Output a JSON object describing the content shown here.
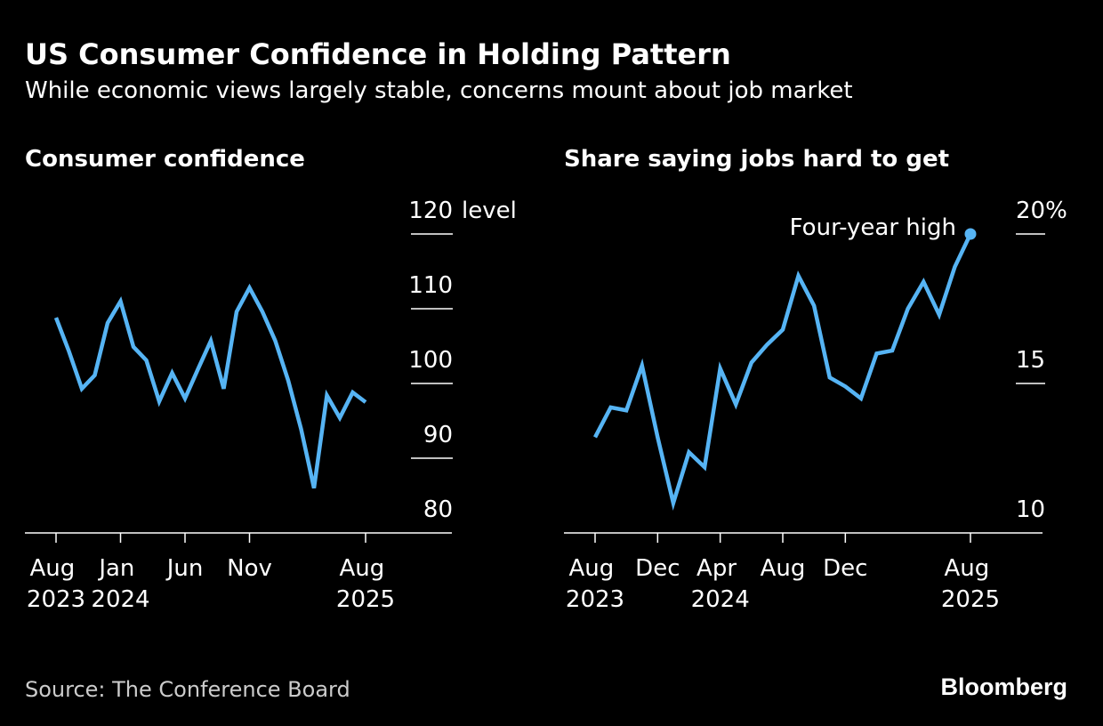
{
  "title": "US Consumer Confidence in Holding Pattern",
  "subtitle": "While economic views largely stable, concerns mount about job market",
  "source": "Source: The Conference Board",
  "logo": "Bloomberg",
  "chart_data": [
    {
      "type": "line",
      "title": "Consumer confidence",
      "y_unit": "level",
      "color": "#56b4f4",
      "categories": [
        "Aug 2023",
        null,
        null,
        null,
        null,
        "Jan 2024",
        null,
        null,
        null,
        null,
        "Jun",
        null,
        null,
        null,
        null,
        "Nov",
        null,
        null,
        null,
        null,
        null,
        null,
        null,
        null,
        "Aug 2025"
      ],
      "values": [
        108.8,
        104.3,
        99.3,
        101.1,
        108.1,
        111.0,
        104.9,
        103.1,
        97.6,
        101.4,
        98.0,
        101.9,
        105.7,
        99.3,
        109.6,
        112.8,
        109.6,
        105.7,
        100.4,
        93.9,
        86.0,
        98.4,
        95.4,
        98.8,
        97.5
      ],
      "ylim": [
        80,
        120
      ],
      "yticks": [
        80,
        90,
        100,
        110,
        120
      ]
    },
    {
      "type": "line",
      "title": "Share saying jobs hard to get",
      "color": "#56b4f4",
      "annotation": "Four-year high",
      "categories": [
        "Aug 2023",
        null,
        null,
        null,
        "Dec",
        null,
        null,
        null,
        "Apr 2024",
        null,
        null,
        null,
        "Aug",
        null,
        null,
        null,
        "Dec",
        null,
        null,
        null,
        null,
        null,
        null,
        null,
        "Aug 2025"
      ],
      "values": [
        13.2,
        14.2,
        14.1,
        15.6,
        13.2,
        11.0,
        12.7,
        12.2,
        15.5,
        14.3,
        15.7,
        16.3,
        16.8,
        18.6,
        17.6,
        15.2,
        14.9,
        14.5,
        16.0,
        16.1,
        17.5,
        18.4,
        17.3,
        18.9,
        20.0
      ],
      "ylim": [
        10,
        20
      ],
      "yticks": [
        10,
        15,
        {
          "value": 20,
          "label": "20%"
        }
      ]
    }
  ]
}
